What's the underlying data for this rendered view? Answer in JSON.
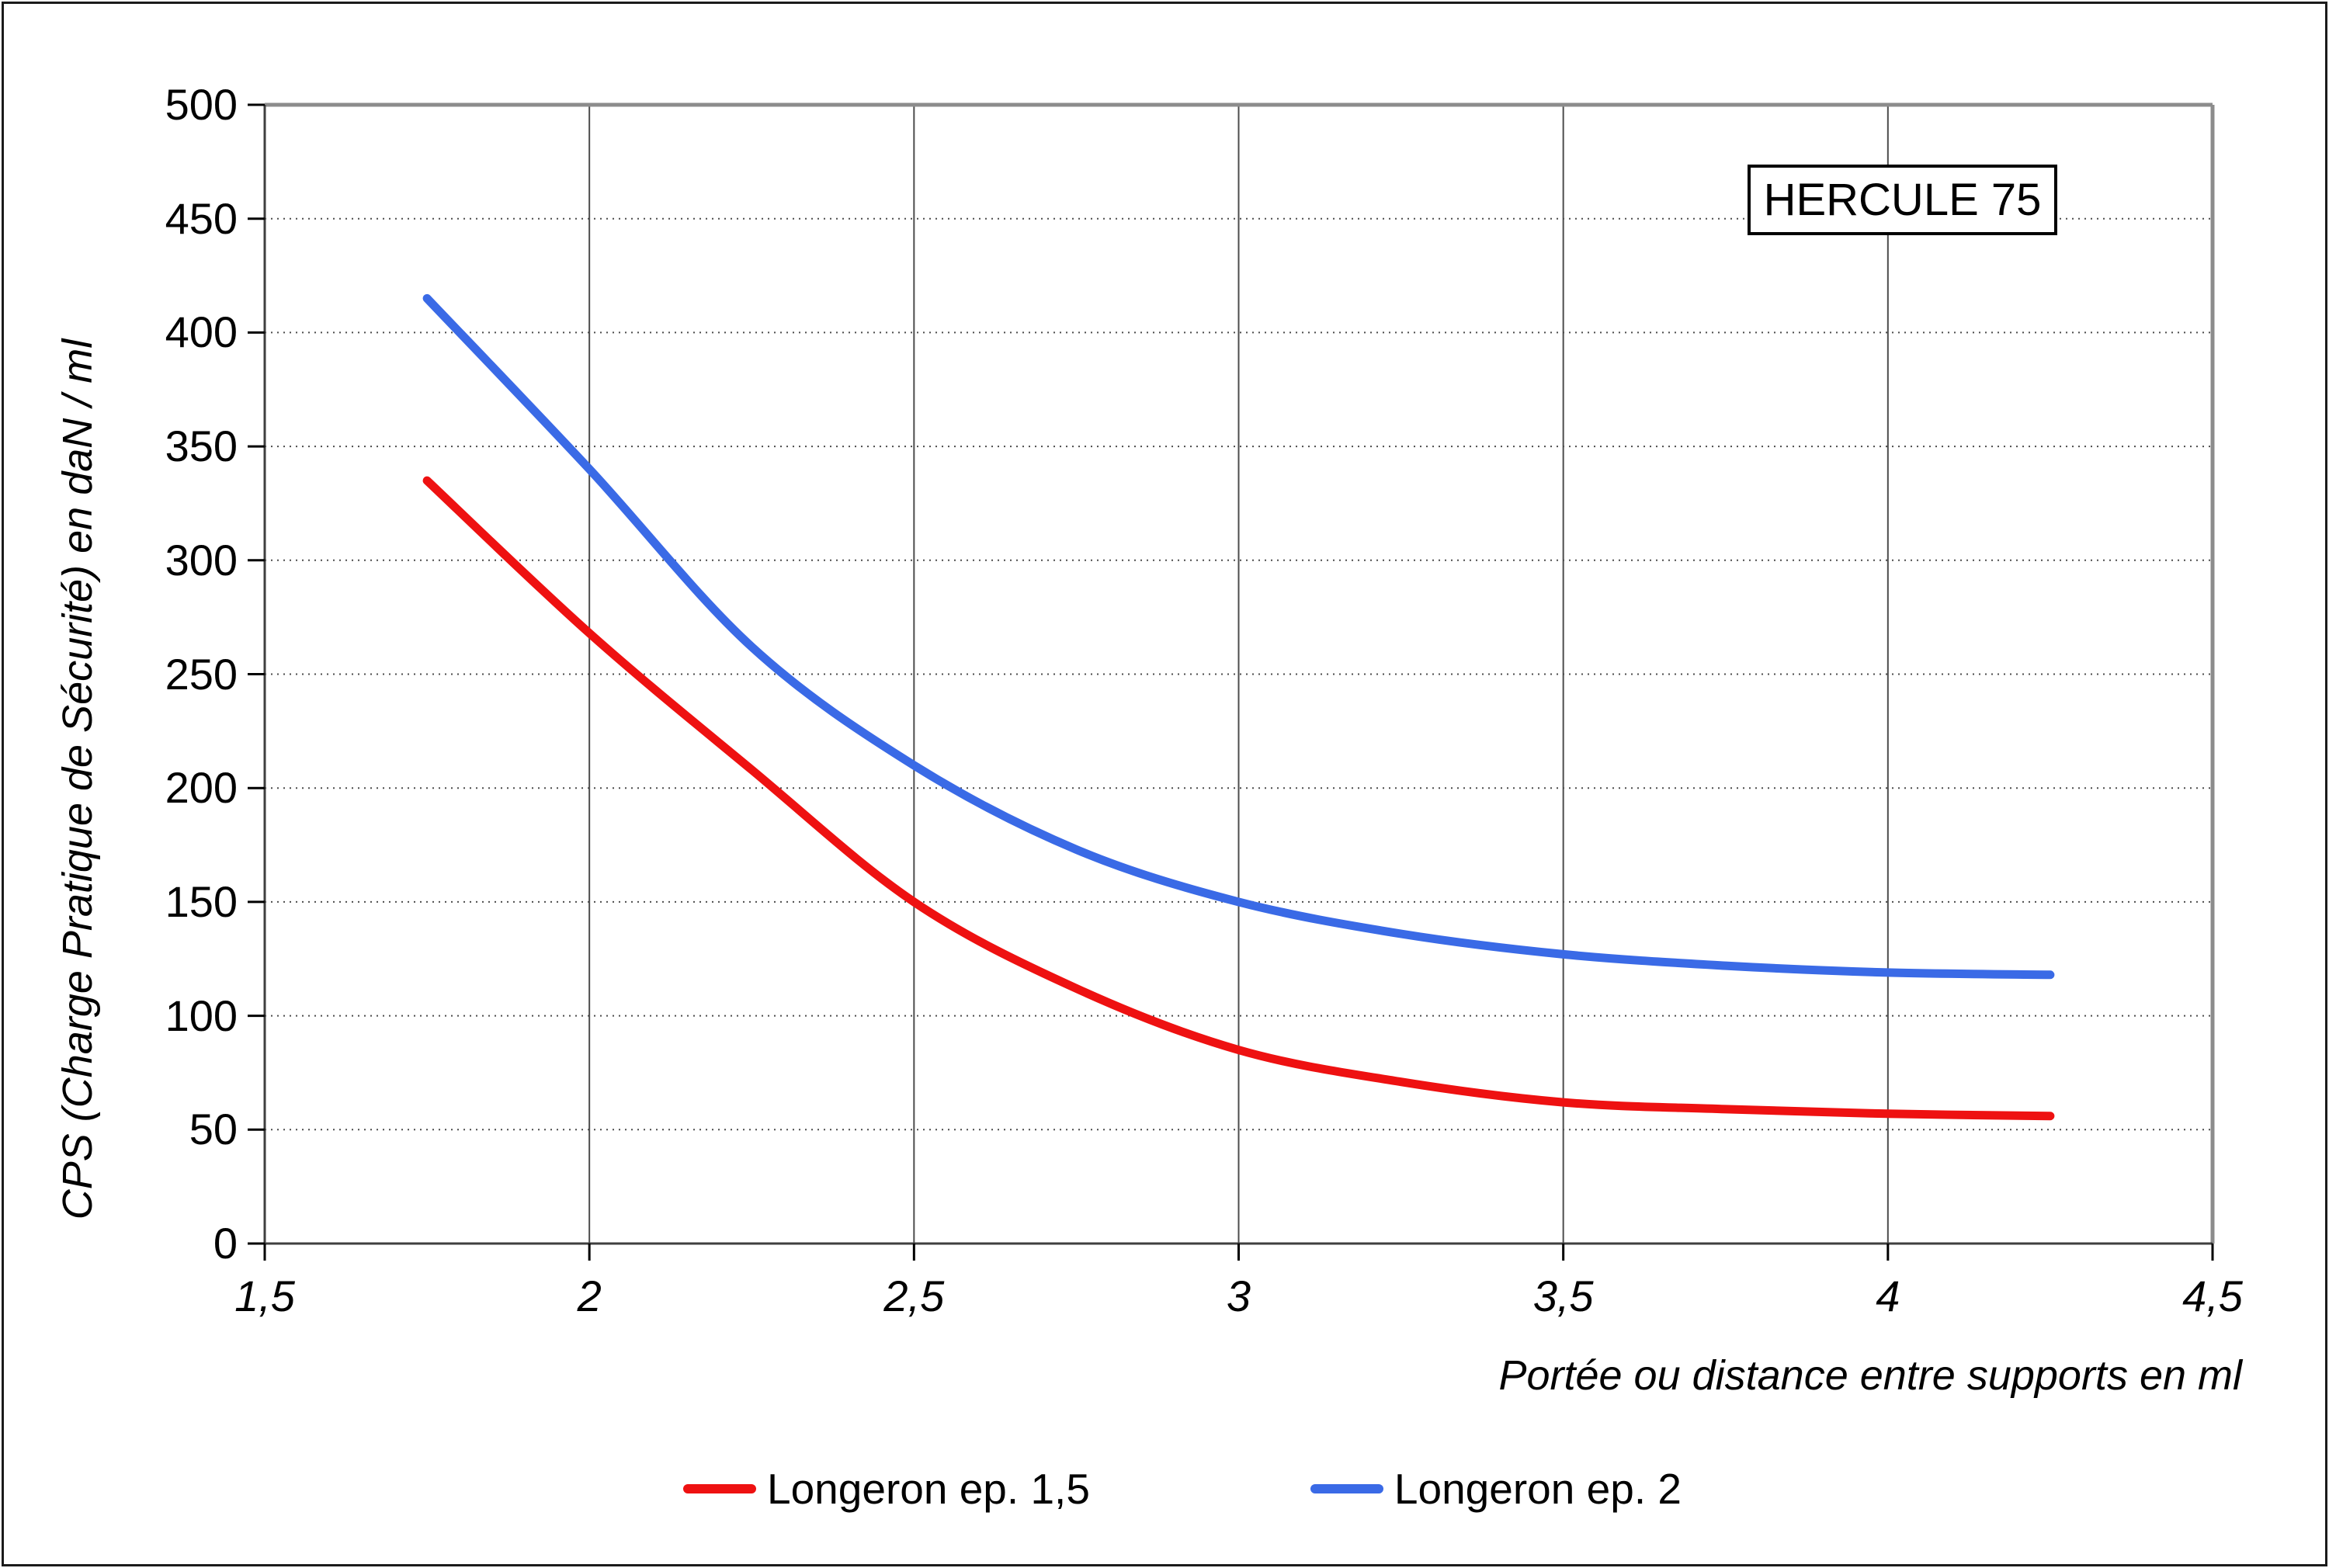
{
  "chart_data": {
    "type": "line",
    "title": "HERCULE 75",
    "xlabel": "Portée ou distance entre supports en ml",
    "ylabel": "CPS  (Charge Pratique de Sécurité) en daN / ml",
    "xlim": [
      1.5,
      4.5
    ],
    "ylim": [
      0,
      500
    ],
    "grid": {
      "vertical": "solid",
      "horizontal": "dotted"
    },
    "legend_position": "bottom",
    "xticks": [
      {
        "value": 1.5,
        "label": "1,5"
      },
      {
        "value": 2,
        "label": "2"
      },
      {
        "value": 2.5,
        "label": "2,5"
      },
      {
        "value": 3,
        "label": "3"
      },
      {
        "value": 3.5,
        "label": "3,5"
      },
      {
        "value": 4,
        "label": "4"
      },
      {
        "value": 4.5,
        "label": "4,5"
      }
    ],
    "yticks": [
      {
        "value": 0,
        "label": "0"
      },
      {
        "value": 50,
        "label": "50"
      },
      {
        "value": 100,
        "label": "100"
      },
      {
        "value": 150,
        "label": "150"
      },
      {
        "value": 200,
        "label": "200"
      },
      {
        "value": 250,
        "label": "250"
      },
      {
        "value": 300,
        "label": "300"
      },
      {
        "value": 350,
        "label": "350"
      },
      {
        "value": 400,
        "label": "400"
      },
      {
        "value": 450,
        "label": "450"
      },
      {
        "value": 500,
        "label": "500"
      }
    ],
    "x": [
      1.75,
      2.0,
      2.25,
      2.5,
      2.75,
      3.0,
      3.25,
      3.5,
      3.75,
      4.0,
      4.25
    ],
    "series": [
      {
        "name": "Longeron ep. 1,5",
        "color": "#ee1111",
        "values": [
          335,
          268,
          208,
          150,
          112,
          85,
          71,
          62,
          59,
          57,
          56
        ]
      },
      {
        "name": "Longeron ep. 2",
        "color": "#3a6ae6",
        "values": [
          415,
          340,
          262,
          210,
          173,
          150,
          136,
          127,
          122,
          119,
          118
        ]
      }
    ]
  },
  "style_colors": {
    "grid_solid": "#4d4d4d",
    "grid_dotted": "#4d4d4d",
    "axis_dark": "#3f3f3f",
    "border_gray": "#8c8c8c",
    "tick": "#000000"
  }
}
